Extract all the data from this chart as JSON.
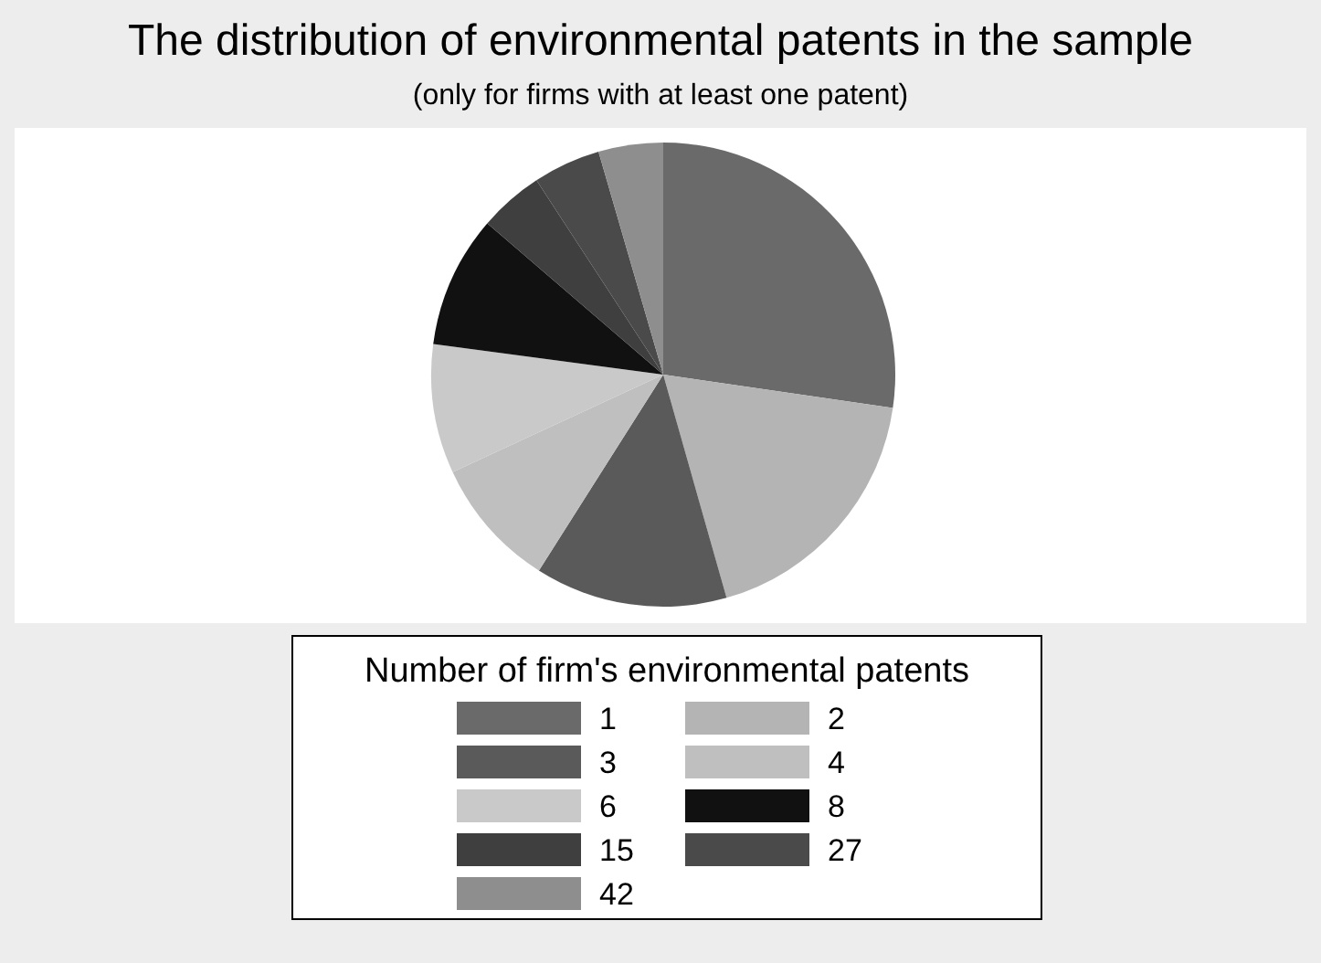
{
  "chart_data": {
    "type": "pie",
    "title": "The distribution of environmental patents in the sample",
    "subtitle": "(only for firms with at least one patent)",
    "legend_title": "Number of firm's environmental patents",
    "legend": "bottom",
    "categories": [
      "1",
      "2",
      "3",
      "4",
      "6",
      "8",
      "15",
      "27",
      "42"
    ],
    "values": [
      27.3,
      18.3,
      13.4,
      9.1,
      9.0,
      9.2,
      4.5,
      4.7,
      4.5
    ],
    "colors": [
      "#6a6a6a",
      "#b4b4b4",
      "#5a5a5a",
      "#bfbfbf",
      "#c9c9c9",
      "#111111",
      "#3f3f3f",
      "#4a4a4a",
      "#8e8e8e"
    ]
  }
}
